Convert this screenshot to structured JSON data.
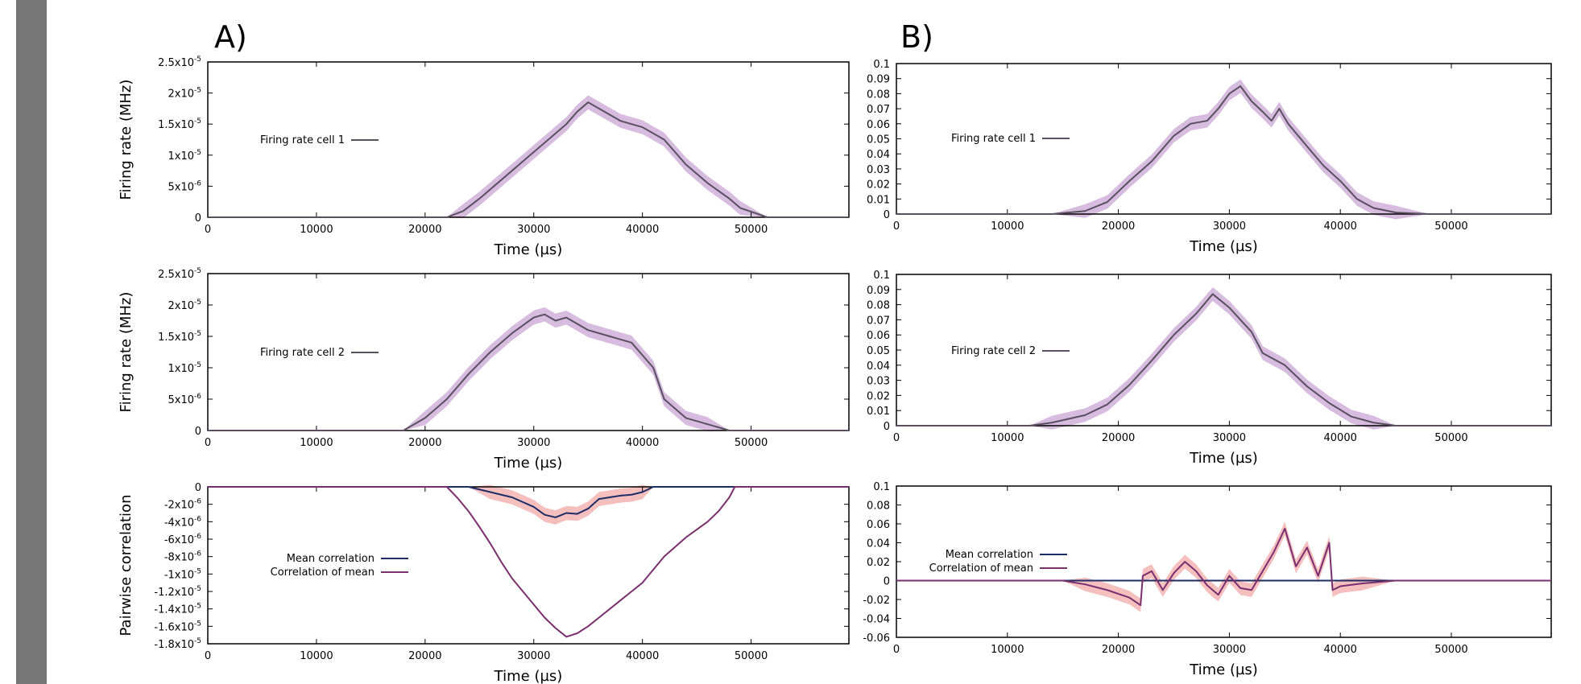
{
  "panels": {
    "left": "A)",
    "right": "B)"
  },
  "colors": {
    "mean": "#5a5060",
    "band": "#c9a6d6",
    "mean_corr": "#1f2d66",
    "corr_of_mean": "#7a2f6e",
    "corr_band": "#f2aaa8"
  },
  "chart_data": [
    {
      "id": "A1",
      "type": "line",
      "xlabel": "Time (µs)",
      "ylabel": "Firing rate (MHz)",
      "xlim": [
        0,
        59000
      ],
      "ylim": [
        0,
        2.5e-05
      ],
      "xticks": [
        0,
        10000,
        20000,
        30000,
        40000,
        50000
      ],
      "yticks": [
        {
          "v": 0,
          "m": "0",
          "e": ""
        },
        {
          "v": 5e-06,
          "m": "5x10",
          "e": "-6"
        },
        {
          "v": 1e-05,
          "m": "1x10",
          "e": "-5"
        },
        {
          "v": 1.5e-05,
          "m": "1.5x10",
          "e": "-5"
        },
        {
          "v": 2e-05,
          "m": "2x10",
          "e": "-5"
        },
        {
          "v": 2.5e-05,
          "m": "2.5x10",
          "e": "-5"
        }
      ],
      "legend": [
        "Firing rate cell 1"
      ],
      "series": [
        {
          "name": "Firing rate cell 1",
          "band": true,
          "x": [
            0,
            10000,
            22000,
            23500,
            25000,
            27000,
            29000,
            31000,
            33000,
            34000,
            35000,
            36000,
            37000,
            38000,
            40000,
            42000,
            44000,
            46000,
            48000,
            49000,
            51500,
            59000
          ],
          "y": [
            0,
            0,
            0,
            1e-06,
            3e-06,
            6e-06,
            9e-06,
            1.2e-05,
            1.5e-05,
            1.7e-05,
            1.85e-05,
            1.75e-05,
            1.65e-05,
            1.55e-05,
            1.45e-05,
            1.25e-05,
            8.5e-06,
            5.5e-06,
            3e-06,
            1.5e-06,
            0,
            0
          ]
        }
      ]
    },
    {
      "id": "B1",
      "type": "line",
      "xlabel": "Time (µs)",
      "ylabel": "",
      "xlim": [
        0,
        59000
      ],
      "ylim": [
        0,
        0.1
      ],
      "xticks": [
        0,
        10000,
        20000,
        30000,
        40000,
        50000
      ],
      "yticks": [
        {
          "v": 0,
          "m": "0",
          "e": ""
        },
        {
          "v": 0.01,
          "m": "0.01",
          "e": ""
        },
        {
          "v": 0.02,
          "m": "0.02",
          "e": ""
        },
        {
          "v": 0.03,
          "m": "0.03",
          "e": ""
        },
        {
          "v": 0.04,
          "m": "0.04",
          "e": ""
        },
        {
          "v": 0.05,
          "m": "0.05",
          "e": ""
        },
        {
          "v": 0.06,
          "m": "0.06",
          "e": ""
        },
        {
          "v": 0.07,
          "m": "0.07",
          "e": ""
        },
        {
          "v": 0.08,
          "m": "0.08",
          "e": ""
        },
        {
          "v": 0.09,
          "m": "0.09",
          "e": ""
        },
        {
          "v": 0.1,
          "m": "0.1",
          "e": ""
        }
      ],
      "legend": [
        "Firing rate cell 1"
      ],
      "series": [
        {
          "name": "Firing rate cell 1",
          "band": true,
          "x": [
            0,
            14000,
            17000,
            19000,
            21000,
            23000,
            25000,
            26500,
            28000,
            29000,
            30000,
            31000,
            32000,
            33000,
            33800,
            34500,
            35300,
            37000,
            38500,
            40000,
            41500,
            43000,
            45000,
            48000,
            59000
          ],
          "y": [
            0,
            0,
            0.002,
            0.008,
            0.022,
            0.035,
            0.052,
            0.06,
            0.062,
            0.07,
            0.08,
            0.085,
            0.075,
            0.068,
            0.062,
            0.07,
            0.06,
            0.045,
            0.032,
            0.022,
            0.01,
            0.004,
            0.001,
            0,
            0
          ]
        }
      ]
    },
    {
      "id": "A2",
      "type": "line",
      "xlabel": "Time (µs)",
      "ylabel": "Firing rate (MHz)",
      "xlim": [
        0,
        59000
      ],
      "ylim": [
        0,
        2.5e-05
      ],
      "xticks": [
        0,
        10000,
        20000,
        30000,
        40000,
        50000
      ],
      "yticks": [
        {
          "v": 0,
          "m": "0",
          "e": ""
        },
        {
          "v": 5e-06,
          "m": "5x10",
          "e": "-6"
        },
        {
          "v": 1e-05,
          "m": "1x10",
          "e": "-5"
        },
        {
          "v": 1.5e-05,
          "m": "1.5x10",
          "e": "-5"
        },
        {
          "v": 2e-05,
          "m": "2x10",
          "e": "-5"
        },
        {
          "v": 2.5e-05,
          "m": "2.5x10",
          "e": "-5"
        }
      ],
      "legend": [
        "Firing rate cell 2"
      ],
      "series": [
        {
          "name": "Firing rate cell 2",
          "band": true,
          "x": [
            0,
            18000,
            20000,
            22000,
            24000,
            26000,
            28000,
            30000,
            31000,
            32000,
            33000,
            35000,
            37000,
            39000,
            40000,
            41000,
            42000,
            44000,
            46000,
            48000,
            59000
          ],
          "y": [
            0,
            0,
            2e-06,
            5e-06,
            9e-06,
            1.25e-05,
            1.55e-05,
            1.8e-05,
            1.85e-05,
            1.75e-05,
            1.8e-05,
            1.6e-05,
            1.5e-05,
            1.4e-05,
            1.2e-05,
            1e-05,
            5e-06,
            2e-06,
            1e-06,
            0,
            0
          ]
        }
      ]
    },
    {
      "id": "B2",
      "type": "line",
      "xlabel": "Time (µs)",
      "ylabel": "",
      "xlim": [
        0,
        59000
      ],
      "ylim": [
        0,
        0.1
      ],
      "xticks": [
        0,
        10000,
        20000,
        30000,
        40000,
        50000
      ],
      "yticks": [
        {
          "v": 0,
          "m": "0",
          "e": ""
        },
        {
          "v": 0.01,
          "m": "0.01",
          "e": ""
        },
        {
          "v": 0.02,
          "m": "0.02",
          "e": ""
        },
        {
          "v": 0.03,
          "m": "0.03",
          "e": ""
        },
        {
          "v": 0.04,
          "m": "0.04",
          "e": ""
        },
        {
          "v": 0.05,
          "m": "0.05",
          "e": ""
        },
        {
          "v": 0.06,
          "m": "0.06",
          "e": ""
        },
        {
          "v": 0.07,
          "m": "0.07",
          "e": ""
        },
        {
          "v": 0.08,
          "m": "0.08",
          "e": ""
        },
        {
          "v": 0.09,
          "m": "0.09",
          "e": ""
        },
        {
          "v": 0.1,
          "m": "0.1",
          "e": ""
        }
      ],
      "legend": [
        "Firing rate cell 2"
      ],
      "series": [
        {
          "name": "Firing rate cell 2",
          "band": true,
          "x": [
            0,
            12000,
            14000,
            17000,
            19000,
            21000,
            23000,
            25000,
            27000,
            28500,
            30000,
            31000,
            32000,
            33000,
            35000,
            37000,
            39000,
            41000,
            43000,
            45000,
            59000
          ],
          "y": [
            0,
            0,
            0.002,
            0.007,
            0.014,
            0.027,
            0.043,
            0.06,
            0.074,
            0.087,
            0.078,
            0.07,
            0.062,
            0.048,
            0.04,
            0.026,
            0.015,
            0.006,
            0.002,
            0,
            0
          ]
        }
      ]
    },
    {
      "id": "A3",
      "type": "line",
      "xlabel": "Time (µs)",
      "ylabel": "Pairwise correlation",
      "xlim": [
        0,
        59000
      ],
      "ylim": [
        -1.8e-05,
        0
      ],
      "xticks": [
        0,
        10000,
        20000,
        30000,
        40000,
        50000
      ],
      "yticks": [
        {
          "v": 0,
          "m": "0",
          "e": ""
        },
        {
          "v": -2e-06,
          "m": "-2x10",
          "e": "-6"
        },
        {
          "v": -4e-06,
          "m": "-4x10",
          "e": "-6"
        },
        {
          "v": -6e-06,
          "m": "-6x10",
          "e": "-6"
        },
        {
          "v": -8e-06,
          "m": "-8x10",
          "e": "-6"
        },
        {
          "v": -1e-05,
          "m": "-1x10",
          "e": "-5"
        },
        {
          "v": -1.2e-05,
          "m": "-1.2x10",
          "e": "-5"
        },
        {
          "v": -1.4e-05,
          "m": "-1.4x10",
          "e": "-5"
        },
        {
          "v": -1.6e-05,
          "m": "-1.6x10",
          "e": "-5"
        },
        {
          "v": -1.8e-05,
          "m": "-1.8x10",
          "e": "-5"
        }
      ],
      "legend": [
        "Mean correlation",
        "Correlation of mean"
      ],
      "series": [
        {
          "name": "Mean correlation",
          "band": true,
          "x": [
            0,
            24000,
            26000,
            28000,
            30000,
            31000,
            32000,
            33000,
            34000,
            35000,
            36000,
            37000,
            38000,
            39000,
            40000,
            41000,
            59000
          ],
          "y": [
            0,
            0,
            -6e-07,
            -1.2e-06,
            -2.3e-06,
            -3.2e-06,
            -3.5e-06,
            -3e-06,
            -3.1e-06,
            -2.5e-06,
            -1.4e-06,
            -1.2e-06,
            -1e-06,
            -9e-07,
            -6e-07,
            0,
            0
          ]
        },
        {
          "name": "Correlation of mean",
          "band": false,
          "x": [
            0,
            22000,
            23000,
            24000,
            25000,
            26000,
            27000,
            28000,
            29000,
            30000,
            31000,
            32000,
            33000,
            34000,
            35000,
            36000,
            37000,
            38000,
            39000,
            40000,
            41000,
            42000,
            44000,
            46000,
            47000,
            48000,
            48500,
            59000
          ],
          "y": [
            0,
            0,
            -1.3e-06,
            -2.8e-06,
            -4.6e-06,
            -6.5e-06,
            -8.6e-06,
            -1.05e-05,
            -1.2e-05,
            -1.35e-05,
            -1.5e-05,
            -1.62e-05,
            -1.72e-05,
            -1.68e-05,
            -1.6e-05,
            -1.5e-05,
            -1.4e-05,
            -1.3e-05,
            -1.2e-05,
            -1.1e-05,
            -9.5e-06,
            -8e-06,
            -5.8e-06,
            -4e-06,
            -2.8e-06,
            -1.2e-06,
            0,
            0
          ]
        }
      ]
    },
    {
      "id": "B3",
      "type": "line",
      "xlabel": "Time (µs)",
      "ylabel": "",
      "xlim": [
        0,
        59000
      ],
      "ylim": [
        -0.06,
        0.1
      ],
      "xticks": [
        0,
        10000,
        20000,
        30000,
        40000,
        50000
      ],
      "yticks": [
        {
          "v": -0.06,
          "m": "-0.06",
          "e": ""
        },
        {
          "v": -0.04,
          "m": "-0.04",
          "e": ""
        },
        {
          "v": -0.02,
          "m": "-0.02",
          "e": ""
        },
        {
          "v": 0,
          "m": "0",
          "e": ""
        },
        {
          "v": 0.02,
          "m": "0.02",
          "e": ""
        },
        {
          "v": 0.04,
          "m": "0.04",
          "e": ""
        },
        {
          "v": 0.06,
          "m": "0.06",
          "e": ""
        },
        {
          "v": 0.08,
          "m": "0.08",
          "e": ""
        },
        {
          "v": 0.1,
          "m": "0.1",
          "e": ""
        }
      ],
      "legend": [
        "Mean correlation",
        "Correlation of mean"
      ],
      "series": [
        {
          "name": "Mean correlation",
          "band": false,
          "x": [
            0,
            59000
          ],
          "y": [
            0,
            0
          ]
        },
        {
          "name": "Correlation of mean",
          "band": true,
          "x": [
            0,
            15000,
            17000,
            19000,
            21000,
            22000,
            22200,
            23000,
            24000,
            25000,
            26000,
            27000,
            28000,
            29000,
            30000,
            31000,
            32000,
            33000,
            34000,
            35000,
            36000,
            37000,
            38000,
            39000,
            39300,
            40000,
            42000,
            45000,
            59000
          ],
          "y": [
            0,
            0,
            -0.004,
            -0.01,
            -0.018,
            -0.026,
            0.005,
            0.01,
            -0.01,
            0.008,
            0.02,
            0.01,
            -0.005,
            -0.015,
            0.005,
            -0.008,
            -0.01,
            0.01,
            0.03,
            0.055,
            0.015,
            0.035,
            0.005,
            0.04,
            -0.01,
            -0.006,
            -0.003,
            0,
            0
          ]
        }
      ]
    }
  ]
}
